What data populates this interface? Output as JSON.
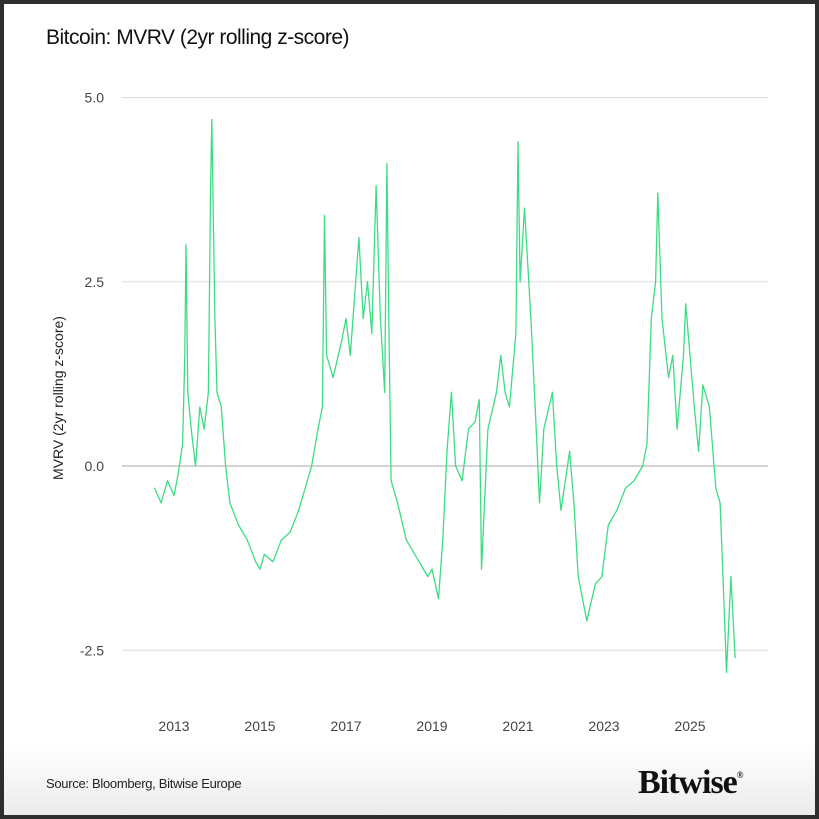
{
  "chart_data": {
    "type": "line",
    "title": "Bitcoin: MVRV (2yr rolling z-score)",
    "ylabel": "MVRV (2yr rolling z-score)",
    "xlabel": "",
    "ylim": [
      -3.3,
      5.0
    ],
    "yticks": [
      "5.0",
      "2.5",
      "0.0",
      "-2.5"
    ],
    "ytick_values": [
      5,
      2.5,
      0,
      -2.5
    ],
    "xticks": [
      "2013",
      "2015",
      "2017",
      "2019",
      "2021",
      "2023",
      "2025"
    ],
    "xlim": [
      2011.8,
      2026.8
    ],
    "grid": "horizontal",
    "color": "#3ddc84",
    "x": [
      2012.55,
      2012.7,
      2012.85,
      2013.0,
      2013.1,
      2013.2,
      2013.25,
      2013.28,
      2013.32,
      2013.4,
      2013.5,
      2013.6,
      2013.7,
      2013.8,
      2013.85,
      2013.88,
      2013.95,
      2014.0,
      2014.1,
      2014.2,
      2014.3,
      2014.5,
      2014.7,
      2014.9,
      2015.0,
      2015.1,
      2015.3,
      2015.5,
      2015.7,
      2015.9,
      2016.0,
      2016.2,
      2016.35,
      2016.45,
      2016.5,
      2016.55,
      2016.7,
      2016.9,
      2017.0,
      2017.1,
      2017.3,
      2017.4,
      2017.5,
      2017.6,
      2017.7,
      2017.8,
      2017.9,
      2017.95,
      2018.0,
      2018.05,
      2018.2,
      2018.4,
      2018.6,
      2018.9,
      2019.0,
      2019.15,
      2019.25,
      2019.35,
      2019.45,
      2019.55,
      2019.7,
      2019.85,
      2020.0,
      2020.1,
      2020.15,
      2020.3,
      2020.5,
      2020.6,
      2020.7,
      2020.8,
      2020.95,
      2021.0,
      2021.05,
      2021.15,
      2021.3,
      2021.4,
      2021.5,
      2021.6,
      2021.8,
      2021.9,
      2022.0,
      2022.2,
      2022.3,
      2022.4,
      2022.5,
      2022.6,
      2022.8,
      2022.95,
      2023.1,
      2023.3,
      2023.5,
      2023.7,
      2023.9,
      2024.0,
      2024.1,
      2024.2,
      2024.25,
      2024.35,
      2024.5,
      2024.6,
      2024.7,
      2024.85,
      2024.9,
      2025.0,
      2025.1,
      2025.2,
      2025.3,
      2025.45,
      2025.6,
      2025.7,
      2025.8,
      2025.85,
      2025.95,
      2026.05
    ],
    "values": [
      -0.3,
      -0.5,
      -0.2,
      -0.4,
      -0.1,
      0.3,
      1.5,
      3.0,
      1.0,
      0.5,
      0.0,
      0.8,
      0.5,
      1.0,
      3.7,
      4.7,
      2.0,
      1.0,
      0.8,
      0.0,
      -0.5,
      -0.8,
      -1.0,
      -1.3,
      -1.4,
      -1.2,
      -1.3,
      -1.0,
      -0.9,
      -0.6,
      -0.4,
      0.0,
      0.5,
      0.8,
      3.4,
      1.5,
      1.2,
      1.7,
      2.0,
      1.5,
      3.1,
      2.0,
      2.5,
      1.8,
      3.8,
      2.0,
      1.0,
      4.1,
      1.8,
      -0.2,
      -0.5,
      -1.0,
      -1.2,
      -1.5,
      -1.4,
      -1.8,
      -1.0,
      0.2,
      1.0,
      0.0,
      -0.2,
      0.5,
      0.6,
      0.9,
      -1.4,
      0.5,
      1.0,
      1.5,
      1.0,
      0.8,
      1.8,
      4.4,
      2.5,
      3.5,
      2.0,
      0.8,
      -0.5,
      0.5,
      1.0,
      0.0,
      -0.6,
      0.2,
      -0.5,
      -1.5,
      -1.8,
      -2.1,
      -1.6,
      -1.5,
      -0.8,
      -0.6,
      -0.3,
      -0.2,
      0.0,
      0.3,
      2.0,
      2.5,
      3.7,
      2.0,
      1.2,
      1.5,
      0.5,
      1.5,
      2.2,
      1.5,
      0.8,
      0.2,
      1.1,
      0.8,
      -0.3,
      -0.5,
      -2.0,
      -2.8,
      -1.5,
      -2.6
    ]
  },
  "source": "Source: Bloomberg, Bitwise Europe",
  "logo": "Bitwise"
}
